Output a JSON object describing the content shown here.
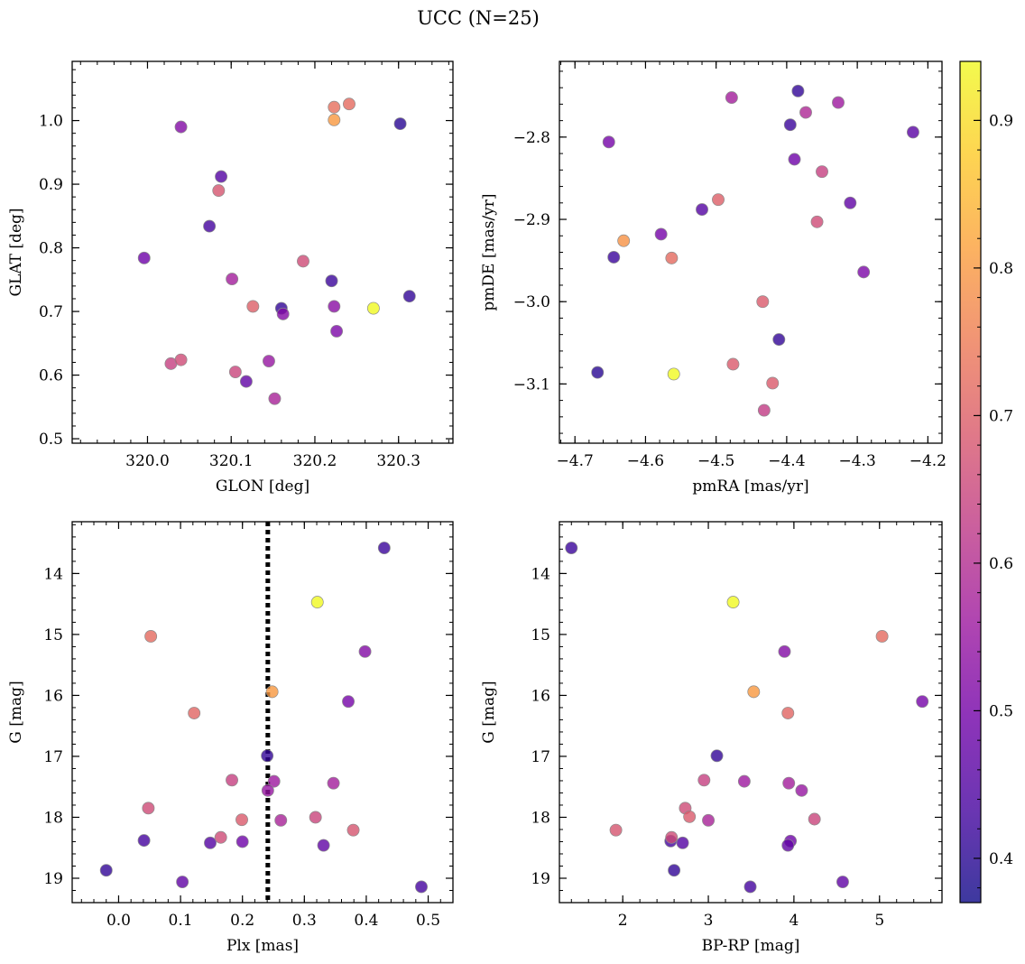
{
  "title": "UCC (N=25)",
  "colormap": {
    "name": "plasma",
    "range": [
      0.37,
      0.94
    ],
    "ticks": [
      0.4,
      0.5,
      0.6,
      0.7,
      0.8,
      0.9
    ],
    "stops": [
      "#0d0887",
      "#46039f",
      "#7201a8",
      "#9c179e",
      "#bd3786",
      "#d8576b",
      "#ed7953",
      "#fb9f3a",
      "#fdca26",
      "#f0f921"
    ],
    "alpha": 0.8,
    "edgecolor": "#8c8c8c"
  },
  "chart_data": [
    {
      "type": "scatter",
      "xlabel": "GLON [deg]",
      "ylabel": "GLAT [deg]",
      "xlim": [
        319.91,
        320.365
      ],
      "ylim": [
        0.493,
        1.093
      ],
      "y_inverted": false,
      "xticks": [
        320.0,
        320.1,
        320.2,
        320.3
      ],
      "xtick_labels": [
        "320.0",
        "320.1",
        "320.2",
        "320.3"
      ],
      "yticks": [
        0.5,
        0.6,
        0.7,
        0.8,
        0.9,
        1.0
      ],
      "ytick_labels": [
        "0.5",
        "0.6",
        "0.7",
        "0.8",
        "0.9",
        "1.0"
      ],
      "vline": null,
      "points": [
        {
          "x": 320.04,
          "y": 0.99,
          "c": 0.52
        },
        {
          "x": 320.088,
          "y": 0.912,
          "c": 0.45
        },
        {
          "x": 320.085,
          "y": 0.89,
          "c": 0.68
        },
        {
          "x": 320.074,
          "y": 0.834,
          "c": 0.43
        },
        {
          "x": 319.996,
          "y": 0.784,
          "c": 0.49
        },
        {
          "x": 320.101,
          "y": 0.751,
          "c": 0.57
        },
        {
          "x": 320.186,
          "y": 0.779,
          "c": 0.66
        },
        {
          "x": 320.126,
          "y": 0.708,
          "c": 0.7
        },
        {
          "x": 320.16,
          "y": 0.705,
          "c": 0.41
        },
        {
          "x": 320.162,
          "y": 0.696,
          "c": 0.52
        },
        {
          "x": 320.22,
          "y": 0.748,
          "c": 0.42
        },
        {
          "x": 320.223,
          "y": 0.708,
          "c": 0.53
        },
        {
          "x": 320.226,
          "y": 0.669,
          "c": 0.51
        },
        {
          "x": 320.27,
          "y": 0.705,
          "c": 0.94
        },
        {
          "x": 320.313,
          "y": 0.724,
          "c": 0.41
        },
        {
          "x": 320.302,
          "y": 0.995,
          "c": 0.4
        },
        {
          "x": 320.223,
          "y": 1.021,
          "c": 0.73
        },
        {
          "x": 320.241,
          "y": 1.026,
          "c": 0.72
        },
        {
          "x": 320.223,
          "y": 1.001,
          "c": 0.8
        },
        {
          "x": 320.028,
          "y": 0.618,
          "c": 0.64
        },
        {
          "x": 320.04,
          "y": 0.624,
          "c": 0.66
        },
        {
          "x": 320.105,
          "y": 0.605,
          "c": 0.65
        },
        {
          "x": 320.118,
          "y": 0.59,
          "c": 0.47
        },
        {
          "x": 320.145,
          "y": 0.622,
          "c": 0.55
        },
        {
          "x": 320.152,
          "y": 0.563,
          "c": 0.58
        }
      ]
    },
    {
      "type": "scatter",
      "xlabel": "pmRA [mas/yr]",
      "ylabel": "pmDE [mas/yr]",
      "xlim": [
        -4.722,
        -4.18
      ],
      "ylim": [
        -3.172,
        -2.708
      ],
      "y_inverted": false,
      "xticks": [
        -4.7,
        -4.6,
        -4.5,
        -4.4,
        -4.3,
        -4.2
      ],
      "xtick_labels": [
        "−4.7",
        "−4.6",
        "−4.5",
        "−4.4",
        "−4.3",
        "−4.2"
      ],
      "yticks": [
        -3.1,
        -3.0,
        -2.9,
        -2.8
      ],
      "ytick_labels": [
        "−3.1",
        "−3.0",
        "−2.9",
        "−2.8"
      ],
      "vline": null,
      "points": [
        {
          "x": -4.478,
          "y": -2.752,
          "c": 0.57
        },
        {
          "x": -4.384,
          "y": -2.744,
          "c": 0.41
        },
        {
          "x": -4.327,
          "y": -2.758,
          "c": 0.56
        },
        {
          "x": -4.373,
          "y": -2.77,
          "c": 0.59
        },
        {
          "x": -4.395,
          "y": -2.785,
          "c": 0.42
        },
        {
          "x": -4.221,
          "y": -2.794,
          "c": 0.46
        },
        {
          "x": -4.652,
          "y": -2.806,
          "c": 0.5
        },
        {
          "x": -4.389,
          "y": -2.827,
          "c": 0.49
        },
        {
          "x": -4.35,
          "y": -2.842,
          "c": 0.64
        },
        {
          "x": -4.497,
          "y": -2.876,
          "c": 0.7
        },
        {
          "x": -4.52,
          "y": -2.888,
          "c": 0.45
        },
        {
          "x": -4.31,
          "y": -2.88,
          "c": 0.47
        },
        {
          "x": -4.357,
          "y": -2.903,
          "c": 0.66
        },
        {
          "x": -4.578,
          "y": -2.918,
          "c": 0.5
        },
        {
          "x": -4.631,
          "y": -2.926,
          "c": 0.79
        },
        {
          "x": -4.645,
          "y": -2.946,
          "c": 0.42
        },
        {
          "x": -4.563,
          "y": -2.947,
          "c": 0.72
        },
        {
          "x": -4.291,
          "y": -2.964,
          "c": 0.51
        },
        {
          "x": -4.434,
          "y": -3.0,
          "c": 0.69
        },
        {
          "x": -4.411,
          "y": -3.046,
          "c": 0.41
        },
        {
          "x": -4.668,
          "y": -3.086,
          "c": 0.4
        },
        {
          "x": -4.56,
          "y": -3.088,
          "c": 0.94
        },
        {
          "x": -4.476,
          "y": -3.076,
          "c": 0.69
        },
        {
          "x": -4.42,
          "y": -3.099,
          "c": 0.69
        },
        {
          "x": -4.432,
          "y": -3.132,
          "c": 0.63
        }
      ]
    },
    {
      "type": "scatter",
      "xlabel": "Plx [mas]",
      "ylabel": "G [mag]",
      "xlim": [
        -0.075,
        0.54
      ],
      "ylim": [
        13.15,
        19.4
      ],
      "y_inverted": true,
      "xticks": [
        0.0,
        0.1,
        0.2,
        0.3,
        0.4,
        0.5
      ],
      "xtick_labels": [
        "0.0",
        "0.1",
        "0.2",
        "0.3",
        "0.4",
        "0.5"
      ],
      "yticks": [
        14,
        15,
        16,
        17,
        18,
        19
      ],
      "ytick_labels": [
        "14",
        "15",
        "16",
        "17",
        "18",
        "19"
      ],
      "vline": 0.241,
      "points": [
        {
          "x": 0.429,
          "y": 13.58,
          "c": 0.42
        },
        {
          "x": 0.321,
          "y": 14.47,
          "c": 0.94
        },
        {
          "x": 0.052,
          "y": 15.03,
          "c": 0.72
        },
        {
          "x": 0.398,
          "y": 15.28,
          "c": 0.52
        },
        {
          "x": 0.248,
          "y": 15.94,
          "c": 0.8
        },
        {
          "x": 0.122,
          "y": 16.29,
          "c": 0.71
        },
        {
          "x": 0.371,
          "y": 16.1,
          "c": 0.5
        },
        {
          "x": 0.24,
          "y": 16.99,
          "c": 0.41
        },
        {
          "x": 0.183,
          "y": 17.39,
          "c": 0.64
        },
        {
          "x": 0.251,
          "y": 17.41,
          "c": 0.56
        },
        {
          "x": 0.347,
          "y": 17.44,
          "c": 0.57
        },
        {
          "x": 0.241,
          "y": 17.56,
          "c": 0.55
        },
        {
          "x": 0.048,
          "y": 17.85,
          "c": 0.66
        },
        {
          "x": 0.199,
          "y": 18.04,
          "c": 0.69
        },
        {
          "x": 0.262,
          "y": 18.05,
          "c": 0.58
        },
        {
          "x": 0.318,
          "y": 18.0,
          "c": 0.65
        },
        {
          "x": 0.379,
          "y": 18.21,
          "c": 0.68
        },
        {
          "x": 0.041,
          "y": 18.38,
          "c": 0.43
        },
        {
          "x": 0.148,
          "y": 18.42,
          "c": 0.45
        },
        {
          "x": 0.165,
          "y": 18.33,
          "c": 0.66
        },
        {
          "x": 0.2,
          "y": 18.4,
          "c": 0.49
        },
        {
          "x": 0.331,
          "y": 18.46,
          "c": 0.47
        },
        {
          "x": -0.02,
          "y": 18.87,
          "c": 0.41
        },
        {
          "x": 0.103,
          "y": 19.06,
          "c": 0.47
        },
        {
          "x": 0.489,
          "y": 19.14,
          "c": 0.43
        }
      ]
    },
    {
      "type": "scatter",
      "xlabel": "BP-RP [mag]",
      "ylabel": "G [mag]",
      "xlim": [
        1.26,
        5.73
      ],
      "ylim": [
        13.15,
        19.4
      ],
      "y_inverted": true,
      "xticks": [
        2,
        3,
        4,
        5
      ],
      "xtick_labels": [
        "2",
        "3",
        "4",
        "5"
      ],
      "yticks": [
        14,
        15,
        16,
        17,
        18,
        19
      ],
      "ytick_labels": [
        "14",
        "15",
        "16",
        "17",
        "18",
        "19"
      ],
      "vline": null,
      "points": [
        {
          "x": 1.4,
          "y": 13.58,
          "c": 0.42
        },
        {
          "x": 3.29,
          "y": 14.47,
          "c": 0.94
        },
        {
          "x": 5.03,
          "y": 15.03,
          "c": 0.72
        },
        {
          "x": 3.89,
          "y": 15.28,
          "c": 0.52
        },
        {
          "x": 3.53,
          "y": 15.94,
          "c": 0.8
        },
        {
          "x": 3.93,
          "y": 16.29,
          "c": 0.71
        },
        {
          "x": 5.5,
          "y": 16.1,
          "c": 0.5
        },
        {
          "x": 3.1,
          "y": 16.99,
          "c": 0.41
        },
        {
          "x": 2.95,
          "y": 17.39,
          "c": 0.64
        },
        {
          "x": 3.42,
          "y": 17.41,
          "c": 0.56
        },
        {
          "x": 3.94,
          "y": 17.44,
          "c": 0.57
        },
        {
          "x": 4.09,
          "y": 17.56,
          "c": 0.55
        },
        {
          "x": 2.73,
          "y": 17.85,
          "c": 0.66
        },
        {
          "x": 2.78,
          "y": 17.99,
          "c": 0.69
        },
        {
          "x": 3.0,
          "y": 18.05,
          "c": 0.58
        },
        {
          "x": 4.24,
          "y": 18.03,
          "c": 0.65
        },
        {
          "x": 1.92,
          "y": 18.21,
          "c": 0.68
        },
        {
          "x": 2.56,
          "y": 18.39,
          "c": 0.43
        },
        {
          "x": 2.7,
          "y": 18.42,
          "c": 0.45
        },
        {
          "x": 2.57,
          "y": 18.33,
          "c": 0.66
        },
        {
          "x": 3.96,
          "y": 18.39,
          "c": 0.49
        },
        {
          "x": 3.93,
          "y": 18.46,
          "c": 0.47
        },
        {
          "x": 2.6,
          "y": 18.87,
          "c": 0.41
        },
        {
          "x": 4.57,
          "y": 19.06,
          "c": 0.47
        },
        {
          "x": 3.49,
          "y": 19.14,
          "c": 0.43
        }
      ]
    }
  ]
}
